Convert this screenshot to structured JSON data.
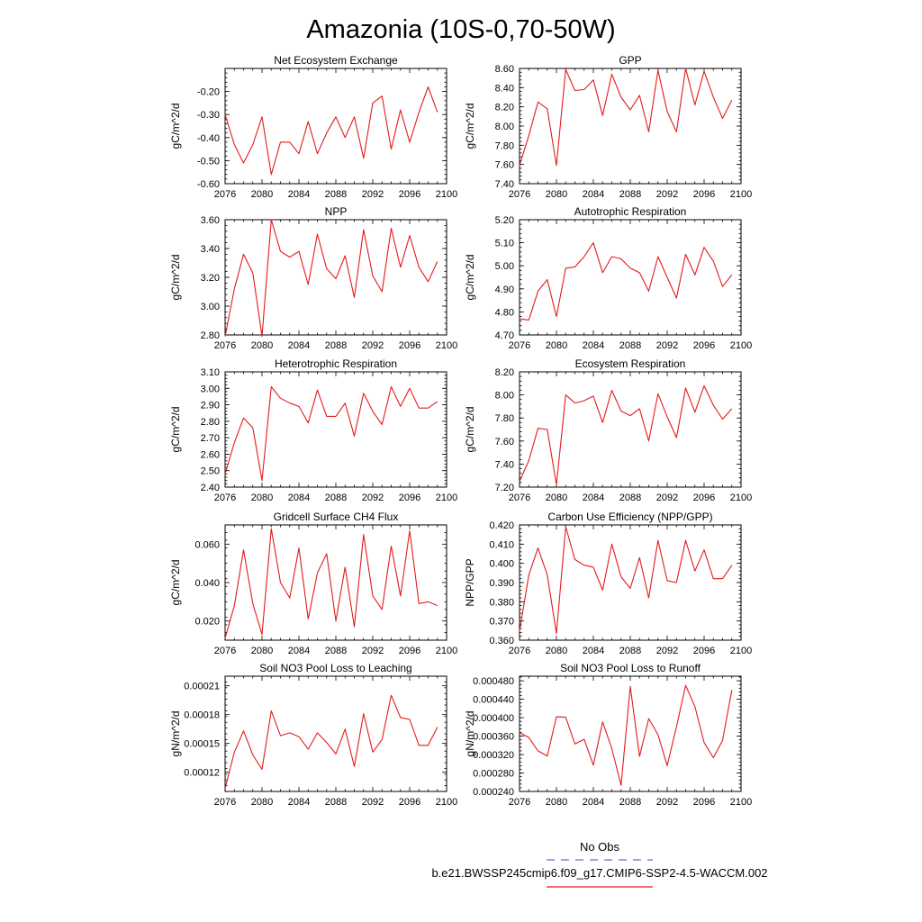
{
  "figure": {
    "title": "Amazonia (10S-0,70-50W)"
  },
  "legend": {
    "entries": [
      {
        "label": "No Obs",
        "color": "#6a6ad6",
        "style": "dashed"
      },
      {
        "label": "b.e21.BWSSP245cmip6.f09_g17.CMIP6-SSP2-4.5-WACCM.002",
        "color": "#e41a1c",
        "style": "solid"
      }
    ]
  },
  "chart_data": [
    {
      "type": "line",
      "title": "Net Ecosystem Exchange",
      "xlabel": "",
      "ylabel": "gC/m^2/d",
      "xlim": [
        2076,
        2100
      ],
      "ylim": [
        -0.6,
        -0.1
      ],
      "xticks": [
        2076,
        2080,
        2084,
        2088,
        2092,
        2096,
        2100
      ],
      "yticks": [
        -0.6,
        -0.5,
        -0.4,
        -0.3,
        -0.2
      ],
      "ytick_labels": [
        "-0.60",
        "-0.50",
        "-0.40",
        "-0.30",
        "-0.20"
      ],
      "series": [
        {
          "name": "b.e21.BWSSP245cmip6.f09_g17.CMIP6-SSP2-4.5-WACCM.002",
          "color": "#e41a1c",
          "x": [
            2076,
            2077,
            2078,
            2079,
            2080,
            2081,
            2082,
            2083,
            2084,
            2085,
            2086,
            2087,
            2088,
            2089,
            2090,
            2091,
            2092,
            2093,
            2094,
            2095,
            2096,
            2097,
            2098,
            2099
          ],
          "values": [
            -0.3,
            -0.43,
            -0.51,
            -0.43,
            -0.31,
            -0.56,
            -0.42,
            -0.42,
            -0.47,
            -0.33,
            -0.47,
            -0.38,
            -0.31,
            -0.4,
            -0.31,
            -0.49,
            -0.25,
            -0.22,
            -0.45,
            -0.28,
            -0.42,
            -0.29,
            -0.18,
            -0.29
          ]
        }
      ]
    },
    {
      "type": "line",
      "title": "GPP",
      "xlabel": "",
      "ylabel": "gC/m^2/d",
      "xlim": [
        2076,
        2100
      ],
      "ylim": [
        7.4,
        8.6
      ],
      "xticks": [
        2076,
        2080,
        2084,
        2088,
        2092,
        2096,
        2100
      ],
      "yticks": [
        7.4,
        7.6,
        7.8,
        8.0,
        8.2,
        8.4,
        8.6
      ],
      "ytick_labels": [
        "7.40",
        "7.60",
        "7.80",
        "8.00",
        "8.20",
        "8.40",
        "8.60"
      ],
      "series": [
        {
          "name": "b.e21.BWSSP245cmip6.f09_g17.CMIP6-SSP2-4.5-WACCM.002",
          "color": "#e41a1c",
          "x": [
            2076,
            2077,
            2078,
            2079,
            2080,
            2081,
            2082,
            2083,
            2084,
            2085,
            2086,
            2087,
            2088,
            2089,
            2090,
            2091,
            2092,
            2093,
            2094,
            2095,
            2096,
            2097,
            2098,
            2099
          ],
          "values": [
            7.59,
            7.9,
            8.25,
            8.18,
            7.59,
            8.59,
            8.37,
            8.38,
            8.48,
            8.11,
            8.54,
            8.3,
            8.17,
            8.32,
            7.94,
            8.58,
            8.15,
            7.94,
            8.6,
            8.22,
            8.57,
            8.3,
            8.08,
            8.27
          ]
        }
      ]
    },
    {
      "type": "line",
      "title": "NPP",
      "xlabel": "",
      "ylabel": "gC/m^2/d",
      "xlim": [
        2076,
        2100
      ],
      "ylim": [
        2.8,
        3.6
      ],
      "xticks": [
        2076,
        2080,
        2084,
        2088,
        2092,
        2096,
        2100
      ],
      "yticks": [
        2.8,
        3.0,
        3.2,
        3.4,
        3.6
      ],
      "ytick_labels": [
        "2.80",
        "3.00",
        "3.20",
        "3.40",
        "3.60"
      ],
      "series": [
        {
          "name": "b.e21.BWSSP245cmip6.f09_g17.CMIP6-SSP2-4.5-WACCM.002",
          "color": "#e41a1c",
          "x": [
            2076,
            2077,
            2078,
            2079,
            2080,
            2081,
            2082,
            2083,
            2084,
            2085,
            2086,
            2087,
            2088,
            2089,
            2090,
            2091,
            2092,
            2093,
            2094,
            2095,
            2096,
            2097,
            2098,
            2099
          ],
          "values": [
            2.79,
            3.12,
            3.36,
            3.23,
            2.79,
            3.6,
            3.38,
            3.34,
            3.38,
            3.15,
            3.5,
            3.26,
            3.19,
            3.35,
            3.06,
            3.53,
            3.21,
            3.1,
            3.54,
            3.27,
            3.49,
            3.27,
            3.17,
            3.31
          ]
        }
      ]
    },
    {
      "type": "line",
      "title": "Autotrophic Respiration",
      "xlabel": "",
      "ylabel": "gC/m^2/d",
      "xlim": [
        2076,
        2100
      ],
      "ylim": [
        4.7,
        5.2
      ],
      "xticks": [
        2076,
        2080,
        2084,
        2088,
        2092,
        2096,
        2100
      ],
      "yticks": [
        4.7,
        4.8,
        4.9,
        5.0,
        5.1,
        5.2
      ],
      "ytick_labels": [
        "4.70",
        "4.80",
        "4.90",
        "5.00",
        "5.10",
        "5.20"
      ],
      "series": [
        {
          "name": "b.e21.BWSSP245cmip6.f09_g17.CMIP6-SSP2-4.5-WACCM.002",
          "color": "#e41a1c",
          "x": [
            2076,
            2077,
            2078,
            2079,
            2080,
            2081,
            2082,
            2083,
            2084,
            2085,
            2086,
            2087,
            2088,
            2089,
            2090,
            2091,
            2092,
            2093,
            2094,
            2095,
            2096,
            2097,
            2098,
            2099
          ],
          "values": [
            4.77,
            4.765,
            4.89,
            4.94,
            4.78,
            4.99,
            4.995,
            5.04,
            5.1,
            4.97,
            5.04,
            5.03,
            4.99,
            4.97,
            4.89,
            5.04,
            4.95,
            4.86,
            5.05,
            4.96,
            5.08,
            5.02,
            4.91,
            4.96
          ]
        }
      ]
    },
    {
      "type": "line",
      "title": "Heterotrophic Respiration",
      "xlabel": "",
      "ylabel": "gC/m^2/d",
      "xlim": [
        2076,
        2100
      ],
      "ylim": [
        2.4,
        3.1
      ],
      "xticks": [
        2076,
        2080,
        2084,
        2088,
        2092,
        2096,
        2100
      ],
      "yticks": [
        2.4,
        2.5,
        2.6,
        2.7,
        2.8,
        2.9,
        3.0,
        3.1
      ],
      "ytick_labels": [
        "2.40",
        "2.50",
        "2.60",
        "2.70",
        "2.80",
        "2.90",
        "3.00",
        "3.10"
      ],
      "series": [
        {
          "name": "b.e21.BWSSP245cmip6.f09_g17.CMIP6-SSP2-4.5-WACCM.002",
          "color": "#e41a1c",
          "x": [
            2076,
            2077,
            2078,
            2079,
            2080,
            2081,
            2082,
            2083,
            2084,
            2085,
            2086,
            2087,
            2088,
            2089,
            2090,
            2091,
            2092,
            2093,
            2094,
            2095,
            2096,
            2097,
            2098,
            2099
          ],
          "values": [
            2.48,
            2.67,
            2.82,
            2.76,
            2.44,
            3.01,
            2.94,
            2.91,
            2.89,
            2.79,
            2.99,
            2.83,
            2.83,
            2.91,
            2.71,
            2.97,
            2.86,
            2.78,
            3.01,
            2.89,
            3.0,
            2.88,
            2.88,
            2.92
          ]
        }
      ]
    },
    {
      "type": "line",
      "title": "Ecosystem Respiration",
      "xlabel": "",
      "ylabel": "gC/m^2/d",
      "xlim": [
        2076,
        2100
      ],
      "ylim": [
        7.2,
        8.2
      ],
      "xticks": [
        2076,
        2080,
        2084,
        2088,
        2092,
        2096,
        2100
      ],
      "yticks": [
        7.2,
        7.4,
        7.6,
        7.8,
        8.0,
        8.2
      ],
      "ytick_labels": [
        "7.20",
        "7.40",
        "7.60",
        "7.80",
        "8.00",
        "8.20"
      ],
      "series": [
        {
          "name": "b.e21.BWSSP245cmip6.f09_g17.CMIP6-SSP2-4.5-WACCM.002",
          "color": "#e41a1c",
          "x": [
            2076,
            2077,
            2078,
            2079,
            2080,
            2081,
            2082,
            2083,
            2084,
            2085,
            2086,
            2087,
            2088,
            2089,
            2090,
            2091,
            2092,
            2093,
            2094,
            2095,
            2096,
            2097,
            2098,
            2099
          ],
          "values": [
            7.25,
            7.43,
            7.71,
            7.7,
            7.22,
            8.0,
            7.93,
            7.95,
            7.99,
            7.76,
            8.04,
            7.86,
            7.82,
            7.88,
            7.6,
            8.01,
            7.81,
            7.63,
            8.06,
            7.85,
            8.08,
            7.91,
            7.79,
            7.88
          ]
        }
      ]
    },
    {
      "type": "line",
      "title": "Gridcell Surface CH4 Flux",
      "xlabel": "",
      "ylabel": "gC/m^2/d",
      "xlim": [
        2076,
        2100
      ],
      "ylim": [
        0.01,
        0.07
      ],
      "xticks": [
        2076,
        2080,
        2084,
        2088,
        2092,
        2096,
        2100
      ],
      "yticks": [
        0.02,
        0.04,
        0.06
      ],
      "ytick_labels": [
        "0.020",
        "0.040",
        "0.060"
      ],
      "series": [
        {
          "name": "b.e21.BWSSP245cmip6.f09_g17.CMIP6-SSP2-4.5-WACCM.002",
          "color": "#e41a1c",
          "x": [
            2076,
            2077,
            2078,
            2079,
            2080,
            2081,
            2082,
            2083,
            2084,
            2085,
            2086,
            2087,
            2088,
            2089,
            2090,
            2091,
            2092,
            2093,
            2094,
            2095,
            2096,
            2097,
            2098,
            2099
          ],
          "values": [
            0.011,
            0.028,
            0.057,
            0.029,
            0.013,
            0.068,
            0.04,
            0.032,
            0.058,
            0.021,
            0.045,
            0.055,
            0.02,
            0.048,
            0.017,
            0.065,
            0.033,
            0.026,
            0.059,
            0.033,
            0.067,
            0.029,
            0.03,
            0.028
          ]
        }
      ]
    },
    {
      "type": "line",
      "title": "Carbon Use Efficiency (NPP/GPP)",
      "xlabel": "",
      "ylabel": "NPP/GPP",
      "xlim": [
        2076,
        2100
      ],
      "ylim": [
        0.36,
        0.42
      ],
      "xticks": [
        2076,
        2080,
        2084,
        2088,
        2092,
        2096,
        2100
      ],
      "yticks": [
        0.36,
        0.37,
        0.38,
        0.39,
        0.4,
        0.41,
        0.42
      ],
      "ytick_labels": [
        "0.360",
        "0.370",
        "0.380",
        "0.390",
        "0.400",
        "0.410",
        "0.420"
      ],
      "series": [
        {
          "name": "b.e21.BWSSP245cmip6.f09_g17.CMIP6-SSP2-4.5-WACCM.002",
          "color": "#e41a1c",
          "x": [
            2076,
            2077,
            2078,
            2079,
            2080,
            2081,
            2082,
            2083,
            2084,
            2085,
            2086,
            2087,
            2088,
            2089,
            2090,
            2091,
            2092,
            2093,
            2094,
            2095,
            2096,
            2097,
            2098,
            2099
          ],
          "values": [
            0.3645,
            0.394,
            0.408,
            0.394,
            0.3635,
            0.419,
            0.402,
            0.399,
            0.398,
            0.386,
            0.41,
            0.393,
            0.387,
            0.403,
            0.382,
            0.412,
            0.391,
            0.39,
            0.412,
            0.396,
            0.407,
            0.392,
            0.392,
            0.399
          ]
        }
      ]
    },
    {
      "type": "line",
      "title": "Soil NO3 Pool Loss to Leaching",
      "xlabel": "",
      "ylabel": "gN/m^2/d",
      "xlim": [
        2076,
        2100
      ],
      "ylim": [
        0.0001,
        0.00022
      ],
      "xticks": [
        2076,
        2080,
        2084,
        2088,
        2092,
        2096,
        2100
      ],
      "yticks": [
        0.00012,
        0.00015,
        0.00018,
        0.00021
      ],
      "ytick_labels": [
        "0.00012",
        "0.00015",
        "0.00018",
        "0.00021"
      ],
      "series": [
        {
          "name": "b.e21.BWSSP245cmip6.f09_g17.CMIP6-SSP2-4.5-WACCM.002",
          "color": "#e41a1c",
          "x": [
            2076,
            2077,
            2078,
            2079,
            2080,
            2081,
            2082,
            2083,
            2084,
            2085,
            2086,
            2087,
            2088,
            2089,
            2090,
            2091,
            2092,
            2093,
            2094,
            2095,
            2096,
            2097,
            2098,
            2099
          ],
          "values": [
            0.000103,
            0.000141,
            0.000163,
            0.000138,
            0.000123,
            0.000184,
            0.000158,
            0.000161,
            0.000157,
            0.000144,
            0.000161,
            0.000151,
            0.000139,
            0.000165,
            0.000126,
            0.000181,
            0.000141,
            0.000154,
            0.0002,
            0.000177,
            0.000175,
            0.000148,
            0.000148,
            0.000167
          ]
        }
      ]
    },
    {
      "type": "line",
      "title": "Soil NO3 Pool Loss to Runoff",
      "xlabel": "",
      "ylabel": "gN/m^2/d",
      "xlim": [
        2076,
        2100
      ],
      "ylim": [
        0.00024,
        0.00049
      ],
      "xticks": [
        2076,
        2080,
        2084,
        2088,
        2092,
        2096,
        2100
      ],
      "yticks": [
        0.00024,
        0.00028,
        0.00032,
        0.00036,
        0.0004,
        0.00044,
        0.00048
      ],
      "ytick_labels": [
        "0.000240",
        "0.000280",
        "0.000320",
        "0.000360",
        "0.000400",
        "0.000440",
        "0.000480"
      ],
      "series": [
        {
          "name": "b.e21.BWSSP245cmip6.f09_g17.CMIP6-SSP2-4.5-WACCM.002",
          "color": "#e41a1c",
          "x": [
            2076,
            2077,
            2078,
            2079,
            2080,
            2081,
            2082,
            2083,
            2084,
            2085,
            2086,
            2087,
            2088,
            2089,
            2090,
            2091,
            2092,
            2093,
            2094,
            2095,
            2096,
            2097,
            2098,
            2099
          ],
          "values": [
            0.000368,
            0.000357,
            0.000328,
            0.000317,
            0.000402,
            0.000401,
            0.000343,
            0.000353,
            0.000297,
            0.000391,
            0.000333,
            0.000253,
            0.000468,
            0.000316,
            0.000398,
            0.000363,
            0.000296,
            0.00038,
            0.00047,
            0.000424,
            0.000346,
            0.000313,
            0.000351,
            0.00046
          ]
        }
      ]
    }
  ]
}
